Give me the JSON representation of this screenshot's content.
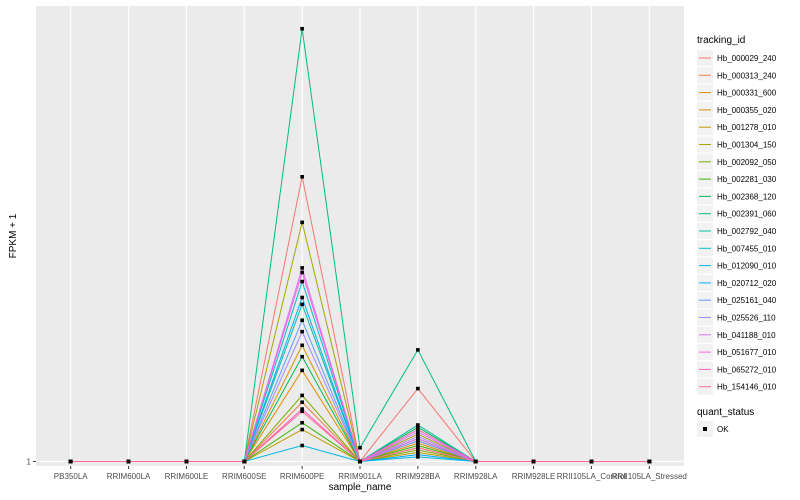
{
  "chart_data": {
    "type": "line",
    "xlabel": "sample_name",
    "ylabel": "FPKM + 1",
    "categories": [
      "PB350LA",
      "RRIM600LA",
      "RRIM600LE",
      "RRIM600SE",
      "RRIM600PE",
      "RRIM901LA",
      "RRIM928BA",
      "RRIM928LA",
      "RRIM928LE",
      "RRII105LA_Control",
      "RRII105LA_Stressed"
    ],
    "y_ticks": [
      "1"
    ],
    "y_tick_values": [
      1
    ],
    "ylim": [
      0.8,
      21.0
    ],
    "grid": true,
    "legend_position": "right",
    "legend_title": "tracking_id",
    "shape_legend": {
      "title": "quant_status",
      "items": [
        {
          "label": "OK"
        }
      ]
    },
    "series": [
      {
        "name": "Hb_000029_240",
        "color": "#F8766D",
        "values": [
          1,
          1,
          1,
          1,
          13.5,
          1,
          4.2,
          1,
          1,
          1,
          1
        ]
      },
      {
        "name": "Hb_000313_240",
        "color": "#EF7F49",
        "values": [
          1,
          1,
          1,
          1,
          3.6,
          1,
          1.6,
          1,
          1,
          1,
          1
        ]
      },
      {
        "name": "Hb_000331_600",
        "color": "#E38900",
        "values": [
          1,
          1,
          1,
          1,
          5.0,
          1,
          1.8,
          1,
          1,
          1,
          1
        ]
      },
      {
        "name": "Hb_000355_020",
        "color": "#D39200",
        "values": [
          1,
          1,
          1,
          1,
          6.1,
          1,
          1.9,
          1,
          1,
          1,
          1
        ]
      },
      {
        "name": "Hb_001278_010",
        "color": "#C09B00",
        "values": [
          1,
          1,
          1,
          1,
          2.4,
          1,
          1.4,
          1,
          1,
          1,
          1
        ]
      },
      {
        "name": "Hb_001304_150",
        "color": "#A3A500",
        "values": [
          1,
          1,
          1,
          1,
          11.5,
          1,
          2.2,
          1,
          1,
          1,
          1
        ]
      },
      {
        "name": "Hb_002092_050",
        "color": "#7CAE00",
        "values": [
          1,
          1,
          1,
          1,
          3.9,
          1,
          1.5,
          1,
          1,
          1,
          1
        ]
      },
      {
        "name": "Hb_002281_030",
        "color": "#39B600",
        "values": [
          1,
          1,
          1,
          1,
          2.7,
          1,
          1.7,
          1,
          1,
          1,
          1
        ]
      },
      {
        "name": "Hb_002368_120",
        "color": "#00BB4E",
        "values": [
          1,
          1,
          1,
          1,
          5.6,
          1,
          2.5,
          1,
          1,
          1,
          1
        ]
      },
      {
        "name": "Hb_002391_060",
        "color": "#00BF7D",
        "values": [
          1,
          1,
          1,
          1,
          20.0,
          1.6,
          5.9,
          1,
          1,
          1,
          1
        ]
      },
      {
        "name": "Hb_002792_040",
        "color": "#00C1A3",
        "values": [
          1,
          1,
          1,
          1,
          7.9,
          1,
          2.6,
          1,
          1,
          1,
          1
        ]
      },
      {
        "name": "Hb_007455_010",
        "color": "#00BFC4",
        "values": [
          1,
          1,
          1,
          1,
          8.9,
          1,
          2.0,
          1,
          1,
          1,
          1
        ]
      },
      {
        "name": "Hb_012090_010",
        "color": "#00B8E5",
        "values": [
          1,
          1,
          1,
          1,
          1.7,
          1,
          1.2,
          1,
          1,
          1,
          1
        ]
      },
      {
        "name": "Hb_020712_020",
        "color": "#00ABFD",
        "values": [
          1,
          1,
          1,
          1,
          8.2,
          1,
          1.3,
          1,
          1,
          1,
          1
        ]
      },
      {
        "name": "Hb_025161_040",
        "color": "#619CFF",
        "values": [
          1,
          1,
          1,
          1,
          7.2,
          1,
          1.9,
          1,
          1,
          1,
          1
        ]
      },
      {
        "name": "Hb_025526_110",
        "color": "#A58AFF",
        "values": [
          1,
          1,
          1,
          1,
          6.7,
          1,
          2.1,
          1,
          1,
          1,
          1
        ]
      },
      {
        "name": "Hb_041188_010",
        "color": "#DB72FB",
        "values": [
          1,
          1,
          1,
          1,
          9.5,
          1,
          2.3,
          1,
          1,
          1,
          1
        ]
      },
      {
        "name": "Hb_051677_010",
        "color": "#F564E3",
        "values": [
          1,
          1,
          1,
          1,
          9.3,
          1,
          2.0,
          1,
          1,
          1,
          1
        ]
      },
      {
        "name": "Hb_065272_010",
        "color": "#FF61C3",
        "values": [
          1,
          1,
          1,
          1,
          3.3,
          1,
          2.4,
          1,
          1,
          1,
          1
        ]
      },
      {
        "name": "Hb_154146_010",
        "color": "#FF6C91",
        "values": [
          1,
          1,
          1,
          1,
          3.2,
          1,
          1.6,
          1,
          1,
          1,
          1
        ]
      }
    ]
  }
}
